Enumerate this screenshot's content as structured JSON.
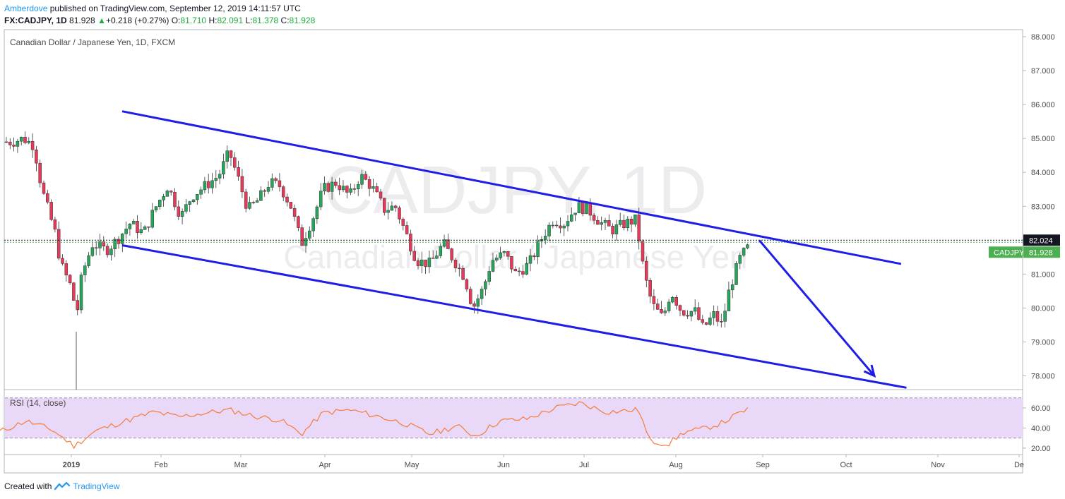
{
  "header": {
    "author": "Amberdove",
    "published_text": "published on TradingView.com, September 12, 2019 14:11:57 UTC",
    "symbol": "FX:CADJPY, 1D",
    "last": "81.928",
    "change": "+0.218 (+0.27%)",
    "o_label": "O:",
    "o": "81.710",
    "h_label": "H:",
    "h": "82.091",
    "l_label": "L:",
    "l": "81.378",
    "c_label": "C:",
    "c": "81.928"
  },
  "watermark": {
    "symbol": "CADJPY, 1D",
    "name": "Canadian Dollar / Japanese Yen"
  },
  "footer": {
    "created_with": "Created with",
    "brand": "TradingView"
  },
  "colors": {
    "up": "#26a65b",
    "down": "#e8395a",
    "channel": "#1e1ee6",
    "rsi_line": "#f57c3a",
    "rsi_band": "#e9d8f7",
    "label_green": "#4caf50"
  },
  "chart_data": [
    {
      "type": "candlestick",
      "title": "Canadian Dollar / Japanese Yen, 1D, FXCM",
      "ylim": [
        77.6,
        88.2
      ],
      "y_ticks": [
        "88.000",
        "87.000",
        "86.000",
        "85.000",
        "84.000",
        "83.000",
        "82.000",
        "81.000",
        "80.000",
        "79.000",
        "78.000"
      ],
      "x_ticks": [
        "2019",
        "Feb",
        "Mar",
        "Apr",
        "May",
        "Jun",
        "Jul",
        "Aug",
        "Sep",
        "Oct",
        "Nov",
        "De"
      ],
      "price_labels": [
        {
          "text": "82.024",
          "style": "dark"
        },
        {
          "text": "CADJPY",
          "style": "green"
        },
        {
          "text": "81.928",
          "style": "green"
        }
      ],
      "close_path": [
        [
          "2018-12-10",
          84.9
        ],
        [
          "2018-12-14",
          85.0
        ],
        [
          "2018-12-18",
          84.8
        ],
        [
          "2018-12-21",
          83.5
        ],
        [
          "2018-12-26",
          82.2
        ],
        [
          "2018-12-28",
          81.3
        ],
        [
          "2019-01-01",
          80.6
        ],
        [
          "2019-01-03",
          79.8
        ],
        [
          "2019-01-05",
          81.0
        ],
        [
          "2019-01-09",
          81.9
        ],
        [
          "2019-01-14",
          81.7
        ],
        [
          "2019-01-18",
          82.0
        ],
        [
          "2019-01-23",
          82.5
        ],
        [
          "2019-01-28",
          82.2
        ],
        [
          "2019-02-01",
          82.9
        ],
        [
          "2019-02-06",
          83.6
        ],
        [
          "2019-02-11",
          82.7
        ],
        [
          "2019-02-15",
          83.3
        ],
        [
          "2019-02-20",
          83.6
        ],
        [
          "2019-02-25",
          83.9
        ],
        [
          "2019-03-01",
          84.6
        ],
        [
          "2019-03-04",
          83.9
        ],
        [
          "2019-03-08",
          82.9
        ],
        [
          "2019-03-12",
          83.2
        ],
        [
          "2019-03-16",
          83.7
        ],
        [
          "2019-03-20",
          83.6
        ],
        [
          "2019-03-24",
          83.0
        ],
        [
          "2019-03-28",
          81.9
        ],
        [
          "2019-04-02",
          82.8
        ],
        [
          "2019-04-05",
          83.5
        ],
        [
          "2019-04-10",
          83.7
        ],
        [
          "2019-04-15",
          83.3
        ],
        [
          "2019-04-19",
          83.9
        ],
        [
          "2019-04-23",
          83.6
        ],
        [
          "2019-04-28",
          82.9
        ],
        [
          "2019-05-02",
          83.0
        ],
        [
          "2019-05-06",
          82.2
        ],
        [
          "2019-05-10",
          81.4
        ],
        [
          "2019-05-15",
          81.3
        ],
        [
          "2019-05-20",
          81.9
        ],
        [
          "2019-05-24",
          81.4
        ],
        [
          "2019-05-28",
          80.9
        ],
        [
          "2019-05-31",
          80.0
        ],
        [
          "2019-06-04",
          80.6
        ],
        [
          "2019-06-07",
          81.4
        ],
        [
          "2019-06-12",
          81.6
        ],
        [
          "2019-06-16",
          81.0
        ],
        [
          "2019-06-21",
          81.3
        ],
        [
          "2019-06-26",
          82.1
        ],
        [
          "2019-06-30",
          82.6
        ],
        [
          "2019-07-04",
          82.5
        ],
        [
          "2019-07-09",
          83.0
        ],
        [
          "2019-07-13",
          82.9
        ],
        [
          "2019-07-18",
          82.5
        ],
        [
          "2019-07-22",
          82.3
        ],
        [
          "2019-07-27",
          82.5
        ],
        [
          "2019-07-31",
          82.6
        ],
        [
          "2019-08-03",
          81.0
        ],
        [
          "2019-08-06",
          80.1
        ],
        [
          "2019-08-10",
          79.7
        ],
        [
          "2019-08-13",
          80.5
        ],
        [
          "2019-08-17",
          79.9
        ],
        [
          "2019-08-22",
          79.9
        ],
        [
          "2019-08-25",
          79.4
        ],
        [
          "2019-08-29",
          79.8
        ],
        [
          "2019-09-01",
          79.5
        ],
        [
          "2019-09-04",
          80.6
        ],
        [
          "2019-09-08",
          81.5
        ],
        [
          "2019-09-12",
          81.9
        ]
      ],
      "annotations": {
        "channel_upper": [
          [
            "2019-01-20",
            85.8
          ],
          [
            "2019-11-07",
            81.3
          ]
        ],
        "channel_lower": [
          [
            "2019-01-20",
            81.85
          ],
          [
            "2019-11-09",
            77.65
          ]
        ],
        "projection_arrow": [
          [
            "2019-09-15",
            82.0
          ],
          [
            "2019-10-28",
            78.0
          ]
        ],
        "dotted_price_line": 82.0
      }
    },
    {
      "type": "line",
      "title": "RSI (14, close)",
      "ylim": [
        14,
        76
      ],
      "y_ticks": [
        "60.00",
        "40.00",
        "20.00"
      ],
      "band": [
        30,
        70
      ],
      "x": [
        "2018-12-05",
        "2018-12-15",
        "2018-12-25",
        "2019-01-02",
        "2019-01-10",
        "2019-01-20",
        "2019-02-01",
        "2019-02-10",
        "2019-02-20",
        "2019-03-01",
        "2019-03-10",
        "2019-03-20",
        "2019-03-28",
        "2019-04-05",
        "2019-04-15",
        "2019-04-25",
        "2019-05-05",
        "2019-05-15",
        "2019-05-25",
        "2019-06-01",
        "2019-06-10",
        "2019-06-20",
        "2019-07-01",
        "2019-07-10",
        "2019-07-20",
        "2019-08-01",
        "2019-08-05",
        "2019-08-12",
        "2019-08-18",
        "2019-08-25",
        "2019-09-01",
        "2019-09-12"
      ],
      "values": [
        36,
        47,
        38,
        22,
        37,
        46,
        56,
        51,
        55,
        58,
        52,
        48,
        34,
        55,
        58,
        52,
        45,
        34,
        42,
        32,
        47,
        49,
        60,
        65,
        56,
        58,
        27,
        24,
        36,
        39,
        45,
        61
      ]
    }
  ]
}
